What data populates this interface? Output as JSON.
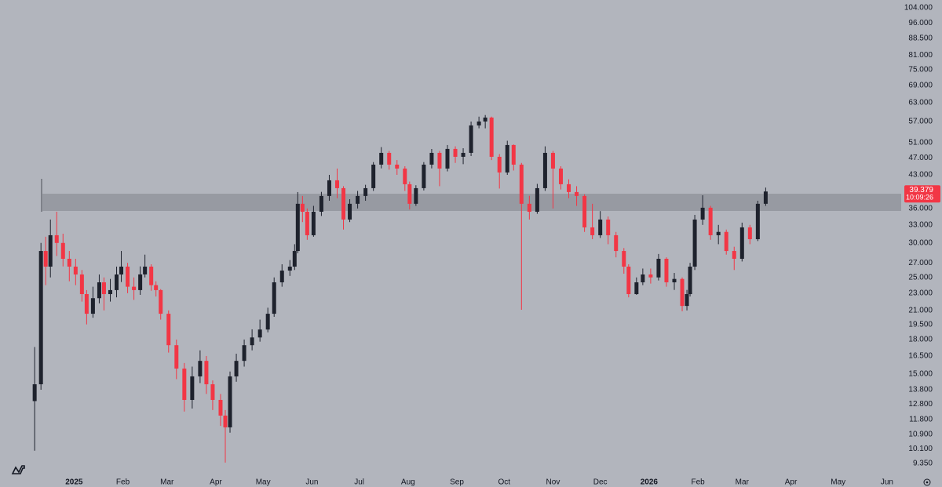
{
  "chart_data": {
    "type": "candlestick",
    "log_scale": true,
    "up_color": "#1e222d",
    "down_color": "#f23645",
    "zone": [
      35530,
      38920
    ],
    "zone_color": "#8e919a",
    "xlim": [
      -22,
      550
    ],
    "ylim": [
      8820,
      108400
    ],
    "xticks": [
      {
        "value": 25,
        "label": "2025"
      },
      {
        "value": 56,
        "label": "Feb"
      },
      {
        "value": 84,
        "label": "Mar"
      },
      {
        "value": 115,
        "label": "Apr"
      },
      {
        "value": 145,
        "label": "May"
      },
      {
        "value": 176,
        "label": "Jun"
      },
      {
        "value": 206,
        "label": "Jul"
      },
      {
        "value": 237,
        "label": "Aug"
      },
      {
        "value": 268,
        "label": "Sep"
      },
      {
        "value": 298,
        "label": "Oct"
      },
      {
        "value": 329,
        "label": "Nov"
      },
      {
        "value": 359,
        "label": "Dec"
      },
      {
        "value": 390,
        "label": "2026"
      },
      {
        "value": 421,
        "label": "Feb"
      },
      {
        "value": 449,
        "label": "Mar"
      },
      {
        "value": 480,
        "label": "Apr"
      },
      {
        "value": 510,
        "label": "May"
      },
      {
        "value": 541,
        "label": "Jun"
      }
    ],
    "yticks": [
      {
        "value": 9350,
        "label": "9.350"
      },
      {
        "value": 10100,
        "label": "10.100"
      },
      {
        "value": 10900,
        "label": "10.900"
      },
      {
        "value": 11800,
        "label": "11.800"
      },
      {
        "value": 12800,
        "label": "12.800"
      },
      {
        "value": 13800,
        "label": "13.800"
      },
      {
        "value": 15000,
        "label": "15.000"
      },
      {
        "value": 16500,
        "label": "16.500"
      },
      {
        "value": 18000,
        "label": "18.000"
      },
      {
        "value": 19500,
        "label": "19.500"
      },
      {
        "value": 21000,
        "label": "21.000"
      },
      {
        "value": 23000,
        "label": "23.000"
      },
      {
        "value": 25000,
        "label": "25.000"
      },
      {
        "value": 27000,
        "label": "27.000"
      },
      {
        "value": 30000,
        "label": "30.000"
      },
      {
        "value": 33000,
        "label": "33.000"
      },
      {
        "value": 36000,
        "label": "36.000"
      },
      {
        "value": 43000,
        "label": "43.000"
      },
      {
        "value": 47000,
        "label": "47.000"
      },
      {
        "value": 51000,
        "label": "51.000"
      },
      {
        "value": 57000,
        "label": "57.000"
      },
      {
        "value": 63000,
        "label": "63.000"
      },
      {
        "value": 69000,
        "label": "69.000"
      },
      {
        "value": 75000,
        "label": "75.000"
      },
      {
        "value": 81000,
        "label": "81.000"
      },
      {
        "value": 88500,
        "label": "88.500"
      },
      {
        "value": 96000,
        "label": "96.000"
      },
      {
        "value": 104000,
        "label": "104.000"
      }
    ],
    "last_price": {
      "value": 39379,
      "label": "39.379"
    },
    "countdown": "10:09:26",
    "x": [
      0,
      4,
      7,
      10,
      14,
      18,
      22,
      26,
      30,
      33,
      37,
      41,
      44,
      48,
      52,
      55,
      59,
      63,
      67,
      70,
      74,
      77,
      80,
      85,
      90,
      95,
      100,
      105,
      109,
      113,
      118,
      121,
      124,
      128,
      133,
      138,
      143,
      148,
      152,
      157,
      162,
      165,
      167,
      170,
      173,
      177,
      182,
      187,
      192,
      196,
      200,
      205,
      210,
      215,
      220,
      225,
      230,
      235,
      238,
      242,
      247,
      252,
      257,
      262,
      267,
      272,
      277,
      282,
      286,
      290,
      295,
      300,
      304,
      309,
      314,
      319,
      324,
      329,
      334,
      339,
      344,
      349,
      354,
      359,
      364,
      369,
      374,
      377,
      382,
      386,
      391,
      396,
      401,
      406,
      411,
      414,
      416,
      419,
      424,
      429,
      434,
      439,
      444,
      449,
      454,
      459,
      464
    ],
    "open": [
      13000,
      14210,
      28750,
      26470,
      31250,
      30000,
      27590,
      26470,
      25390,
      22890,
      20630,
      22400,
      24360,
      22890,
      23380,
      25390,
      26470,
      23800,
      23380,
      25400,
      26470,
      24000,
      23380,
      20630,
      17470,
      15440,
      13080,
      14814,
      16080,
      14210,
      13080,
      12040,
      11315,
      14814,
      16080,
      17470,
      18200,
      18980,
      20630,
      24360,
      25920,
      26470,
      28750,
      36900,
      35380,
      31250,
      35380,
      38460,
      41780,
      40080,
      33950,
      36900,
      38460,
      40080,
      45390,
      48300,
      45390,
      44460,
      40920,
      36900,
      40080,
      45390,
      48300,
      44460,
      49320,
      47310,
      48300,
      55850,
      57020,
      58220,
      47310,
      43550,
      50350,
      45390,
      36900,
      35380,
      40080,
      48300,
      44460,
      40920,
      39260,
      38460,
      32570,
      31250,
      33950,
      31250,
      28750,
      26470,
      22890,
      24360,
      25390,
      25000,
      27590,
      24360,
      24800,
      21500,
      22890,
      26470,
      33950,
      36140,
      31250,
      31800,
      28750,
      27590,
      32570,
      30600,
      36900
    ],
    "high": [
      17300,
      30000,
      31000,
      33950,
      35380,
      31500,
      28750,
      27590,
      26000,
      23380,
      23800,
      25390,
      25000,
      24800,
      26470,
      28750,
      27000,
      25000,
      26500,
      28200,
      26800,
      24500,
      23500,
      21000,
      18000,
      15900,
      15600,
      17000,
      16500,
      14500,
      13500,
      12400,
      15200,
      16700,
      18000,
      19000,
      20000,
      21300,
      25000,
      26800,
      27400,
      29800,
      39260,
      38460,
      36000,
      36500,
      39300,
      43000,
      44460,
      40500,
      37800,
      39500,
      40800,
      46000,
      49800,
      48800,
      46500,
      45000,
      41500,
      40700,
      46000,
      49300,
      48800,
      50350,
      50000,
      49500,
      57000,
      58500,
      59000,
      58500,
      48000,
      51500,
      50500,
      45800,
      38500,
      41000,
      50000,
      48800,
      45000,
      42000,
      40500,
      38800,
      36900,
      35500,
      34500,
      31800,
      29200,
      26800,
      25000,
      26200,
      26200,
      28300,
      27800,
      25600,
      25000,
      23400,
      27000,
      34800,
      38600,
      36500,
      33000,
      32200,
      29400,
      33400,
      33000,
      37500,
      40200
    ],
    "low": [
      9997,
      13800,
      24000,
      25000,
      28000,
      26500,
      24500,
      24000,
      22000,
      19500,
      20200,
      21800,
      21000,
      22000,
      22500,
      24400,
      23000,
      22200,
      22800,
      25000,
      23300,
      22600,
      20000,
      16800,
      14600,
      12300,
      12500,
      14300,
      13500,
      12400,
      11400,
      9389,
      11000,
      14400,
      15600,
      17000,
      17800,
      18700,
      20300,
      23800,
      25200,
      26000,
      28400,
      33500,
      30500,
      31000,
      34600,
      37500,
      38000,
      32200,
      33500,
      36000,
      37500,
      39500,
      44500,
      44200,
      43000,
      39500,
      35800,
      36500,
      39600,
      44500,
      40500,
      43800,
      45800,
      45500,
      47500,
      55000,
      55000,
      46500,
      40000,
      43000,
      44000,
      21070,
      33950,
      35000,
      39500,
      36000,
      39800,
      38000,
      36500,
      31800,
      30600,
      30800,
      29800,
      27800,
      25500,
      22500,
      22800,
      24000,
      24200,
      24600,
      23800,
      23400,
      20900,
      21000,
      22600,
      26000,
      33000,
      30500,
      29800,
      28200,
      26000,
      27200,
      29800,
      30300,
      36500
    ],
    "close": [
      14210,
      28750,
      26470,
      31250,
      30000,
      27590,
      26470,
      25390,
      22890,
      20630,
      22400,
      24360,
      22890,
      23380,
      25390,
      26470,
      23800,
      23380,
      25400,
      26470,
      24000,
      23380,
      20630,
      17470,
      15440,
      13080,
      14814,
      16080,
      14210,
      13080,
      12040,
      11315,
      14814,
      16080,
      17470,
      18200,
      18980,
      20630,
      24360,
      25920,
      26470,
      28750,
      36900,
      35380,
      31250,
      35380,
      38460,
      41780,
      40080,
      33950,
      36900,
      38460,
      40080,
      45390,
      48300,
      45390,
      44460,
      40920,
      36900,
      40080,
      45390,
      48300,
      44460,
      49320,
      47310,
      48300,
      55850,
      57020,
      58220,
      47310,
      43550,
      50350,
      45390,
      36900,
      35380,
      40080,
      48300,
      44460,
      40920,
      39260,
      38460,
      32570,
      31250,
      33950,
      31250,
      28750,
      26470,
      22890,
      24360,
      25390,
      25000,
      27590,
      24360,
      24800,
      21500,
      22890,
      26470,
      33950,
      36140,
      31250,
      31800,
      28750,
      27590,
      32570,
      30600,
      36900,
      39379
    ]
  }
}
